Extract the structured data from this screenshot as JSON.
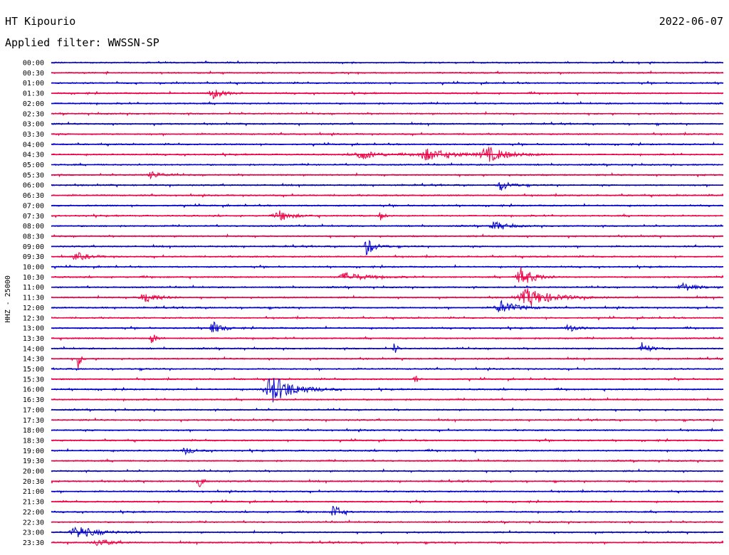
{
  "header": {
    "station": "HT Kipourio",
    "date": "2022-06-07",
    "filter": "Applied filter: WWSSN-SP"
  },
  "chart_data": {
    "type": "line",
    "title": "HT Kipourio",
    "subtitle": "Applied filter: WWSSN-SP",
    "date": "2022-06-07",
    "ylabel": "HHZ - 25000",
    "row_labels": [
      "00:00",
      "00:30",
      "01:00",
      "01:30",
      "02:00",
      "02:30",
      "03:00",
      "03:30",
      "04:00",
      "04:30",
      "05:00",
      "05:30",
      "06:00",
      "06:30",
      "07:00",
      "07:30",
      "08:00",
      "08:30",
      "09:00",
      "09:30",
      "10:00",
      "10:30",
      "11:00",
      "11:30",
      "12:00",
      "12:30",
      "13:00",
      "13:30",
      "14:00",
      "14:30",
      "15:00",
      "15:30",
      "16:00",
      "16:30",
      "17:00",
      "17:30",
      "18:00",
      "18:30",
      "19:00",
      "19:30",
      "20:00",
      "20:30",
      "21:00",
      "21:30",
      "22:00",
      "22:30",
      "23:00",
      "23:30"
    ],
    "series_colors": [
      "#0000cc",
      "#ee0044"
    ],
    "events": [
      {
        "row": 3,
        "t": 0.24,
        "amp": 8,
        "w": 0.012
      },
      {
        "row": 9,
        "t": 0.46,
        "amp": 7,
        "w": 0.02
      },
      {
        "row": 9,
        "t": 0.56,
        "amp": 8,
        "w": 0.03
      },
      {
        "row": 9,
        "t": 0.65,
        "amp": 10,
        "w": 0.025
      },
      {
        "row": 11,
        "t": 0.15,
        "amp": 5,
        "w": 0.012
      },
      {
        "row": 12,
        "t": 0.67,
        "amp": 8,
        "w": 0.01
      },
      {
        "row": 15,
        "t": 0.34,
        "amp": 7,
        "w": 0.015
      },
      {
        "row": 15,
        "t": 0.49,
        "amp": 6,
        "w": 0.005
      },
      {
        "row": 16,
        "t": 0.66,
        "amp": 6,
        "w": 0.015
      },
      {
        "row": 18,
        "t": 0.47,
        "amp": 12,
        "w": 0.01
      },
      {
        "row": 19,
        "t": 0.04,
        "amp": 5,
        "w": 0.015
      },
      {
        "row": 21,
        "t": 0.44,
        "amp": 6,
        "w": 0.025
      },
      {
        "row": 21,
        "t": 0.7,
        "amp": 14,
        "w": 0.015
      },
      {
        "row": 22,
        "t": 0.94,
        "amp": 6,
        "w": 0.015
      },
      {
        "row": 23,
        "t": 0.14,
        "amp": 8,
        "w": 0.015
      },
      {
        "row": 23,
        "t": 0.71,
        "amp": 12,
        "w": 0.03
      },
      {
        "row": 24,
        "t": 0.67,
        "amp": 9,
        "w": 0.02
      },
      {
        "row": 26,
        "t": 0.24,
        "amp": 10,
        "w": 0.01
      },
      {
        "row": 26,
        "t": 0.77,
        "amp": 6,
        "w": 0.01
      },
      {
        "row": 27,
        "t": 0.15,
        "amp": 9,
        "w": 0.005
      },
      {
        "row": 28,
        "t": 0.51,
        "amp": 10,
        "w": 0.003
      },
      {
        "row": 28,
        "t": 0.88,
        "amp": 7,
        "w": 0.01
      },
      {
        "row": 29,
        "t": 0.04,
        "amp": 14,
        "w": 0.003
      },
      {
        "row": 31,
        "t": 0.54,
        "amp": 10,
        "w": 0.003
      },
      {
        "row": 32,
        "t": 0.33,
        "amp": 20,
        "w": 0.025
      },
      {
        "row": 38,
        "t": 0.2,
        "amp": 5,
        "w": 0.01
      },
      {
        "row": 41,
        "t": 0.22,
        "amp": 12,
        "w": 0.004
      },
      {
        "row": 44,
        "t": 0.42,
        "amp": 12,
        "w": 0.008
      },
      {
        "row": 46,
        "t": 0.04,
        "amp": 8,
        "w": 0.025
      },
      {
        "row": 47,
        "t": 0.07,
        "amp": 5,
        "w": 0.015
      }
    ]
  }
}
